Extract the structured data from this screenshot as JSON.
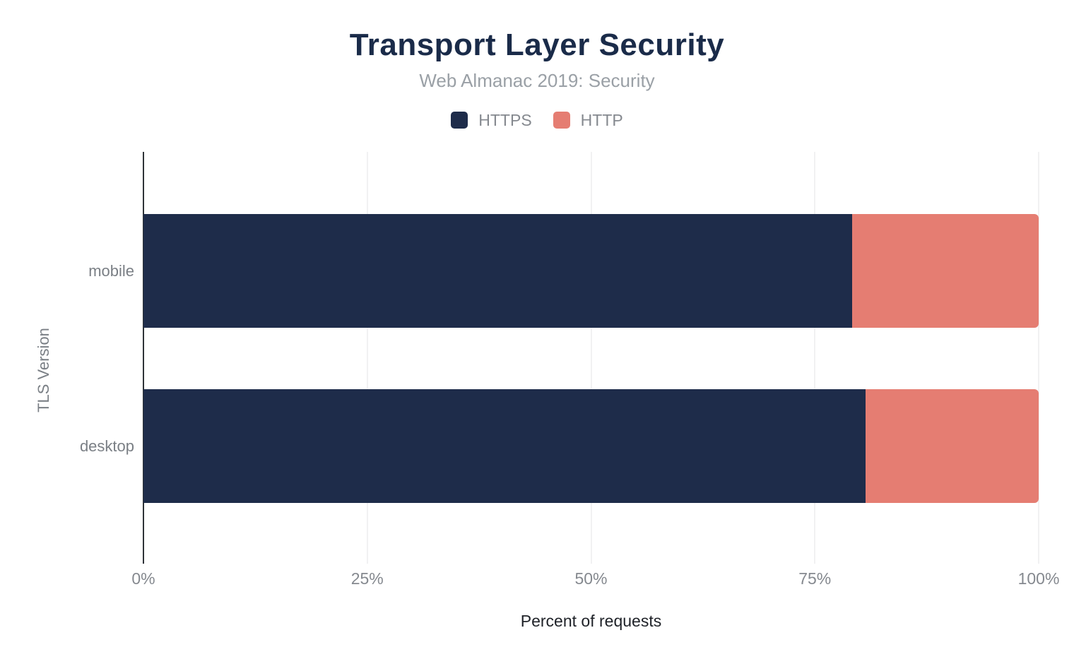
{
  "chart_data": {
    "type": "bar",
    "orientation": "horizontal",
    "stacked": true,
    "title": "Transport Layer Security",
    "subtitle": "Web Almanac 2019: Security",
    "xlabel": "Percent of requests",
    "ylabel": "TLS Version",
    "categories": [
      "mobile",
      "desktop"
    ],
    "series": [
      {
        "name": "HTTPS",
        "color": "#1e2c4a",
        "values": [
          79.2,
          80.7
        ]
      },
      {
        "name": "HTTP",
        "color": "#e57d72",
        "values": [
          20.8,
          19.3
        ]
      }
    ],
    "xlim": [
      0,
      100
    ],
    "x_ticks": [
      "0%",
      "25%",
      "50%",
      "75%",
      "100%"
    ],
    "grid": true,
    "legend_position": "top"
  },
  "colors": {
    "https": "#1e2c4a",
    "http": "#e57d72",
    "title": "#1a2b49",
    "background": "#ffffff"
  }
}
